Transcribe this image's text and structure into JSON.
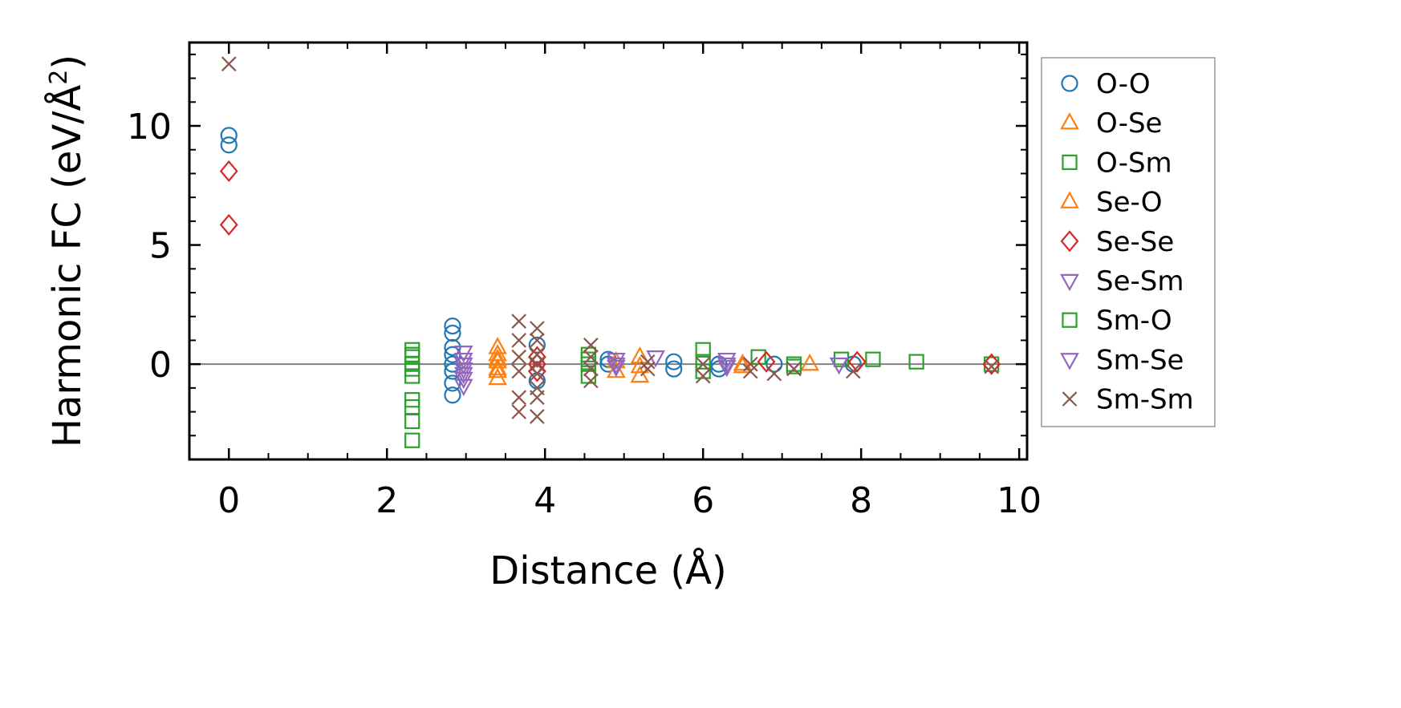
{
  "chart_data": {
    "type": "scatter",
    "xlabel": "Distance (Å)",
    "ylabel_main": "Harmonic FC (eV/Å",
    "ylabel_sup": "2",
    "ylabel_close": ")",
    "xlim": [
      -0.5,
      10.1
    ],
    "ylim": [
      -4.0,
      13.5
    ],
    "xticks": [
      0,
      2,
      4,
      6,
      8,
      10
    ],
    "xtick_labels": [
      "0",
      "2",
      "4",
      "6",
      "8",
      "10"
    ],
    "yticks": [
      0,
      5,
      10
    ],
    "ytick_labels": [
      "0",
      "5",
      "10"
    ],
    "grid": false,
    "legend_position": "outside-right",
    "zero_line": 0,
    "series": [
      {
        "name": "O-O",
        "marker": "circle",
        "filled": false,
        "color": "#1f77b4",
        "points": [
          [
            0,
            9.6
          ],
          [
            0,
            9.2
          ],
          [
            2.83,
            1.6
          ],
          [
            2.83,
            1.3
          ],
          [
            2.83,
            0.7
          ],
          [
            2.83,
            0.4
          ],
          [
            2.83,
            0.0
          ],
          [
            2.83,
            -0.3
          ],
          [
            2.83,
            -0.8
          ],
          [
            2.83,
            -1.3
          ],
          [
            3.9,
            0.8
          ],
          [
            3.9,
            -0.7
          ],
          [
            4.8,
            0.2
          ],
          [
            4.8,
            0.0
          ],
          [
            5.63,
            0.1
          ],
          [
            5.63,
            -0.2
          ],
          [
            6.2,
            0.0
          ],
          [
            6.2,
            -0.2
          ],
          [
            6.9,
            0.0
          ],
          [
            7.9,
            0.0
          ]
        ]
      },
      {
        "name": "O-Se",
        "marker": "triangle-up",
        "filled": false,
        "color": "#ff7f0e",
        "points": [
          [
            3.4,
            0.7
          ],
          [
            3.4,
            0.4
          ],
          [
            3.4,
            0.1
          ],
          [
            3.4,
            -0.3
          ],
          [
            3.4,
            -0.6
          ],
          [
            4.9,
            -0.3
          ],
          [
            5.2,
            0.3
          ],
          [
            5.2,
            -0.5
          ],
          [
            6.5,
            0.0
          ],
          [
            7.35,
            0.0
          ]
        ]
      },
      {
        "name": "O-Sm",
        "marker": "square",
        "filled": false,
        "color": "#2ca02c",
        "points": [
          [
            2.32,
            0.6
          ],
          [
            2.32,
            0.3
          ],
          [
            2.32,
            0.0
          ],
          [
            2.32,
            -0.5
          ],
          [
            2.32,
            -1.5
          ],
          [
            2.32,
            -1.8
          ],
          [
            2.32,
            -2.4
          ],
          [
            2.32,
            -3.2
          ],
          [
            4.55,
            0.4
          ],
          [
            4.55,
            0.0
          ],
          [
            4.55,
            -0.5
          ],
          [
            6.0,
            0.6
          ],
          [
            6.0,
            -0.3
          ],
          [
            6.7,
            0.3
          ],
          [
            7.15,
            0.0
          ],
          [
            7.75,
            0.2
          ],
          [
            8.15,
            0.2
          ],
          [
            8.7,
            0.1
          ],
          [
            9.65,
            0.0
          ]
        ]
      },
      {
        "name": "Se-O",
        "marker": "triangle-up",
        "filled": false,
        "color": "#ff7f0e",
        "points": [
          [
            3.4,
            0.2
          ],
          [
            3.4,
            -0.2
          ],
          [
            4.9,
            0.1
          ],
          [
            5.2,
            -0.1
          ],
          [
            6.5,
            -0.1
          ]
        ]
      },
      {
        "name": "Se-Se",
        "marker": "diamond",
        "filled": false,
        "color": "#d62728",
        "points": [
          [
            0,
            8.1
          ],
          [
            0,
            5.85
          ],
          [
            3.9,
            0.3
          ],
          [
            3.9,
            0.0
          ],
          [
            3.9,
            -0.3
          ],
          [
            6.8,
            0.1
          ],
          [
            7.95,
            0.1
          ],
          [
            9.65,
            0.0
          ]
        ]
      },
      {
        "name": "Se-Sm",
        "marker": "triangle-down",
        "filled": false,
        "color": "#9467bd",
        "points": [
          [
            2.97,
            0.5
          ],
          [
            2.97,
            0.2
          ],
          [
            2.97,
            -0.2
          ],
          [
            2.97,
            -0.6
          ],
          [
            2.97,
            -0.9
          ],
          [
            4.9,
            0.2
          ],
          [
            4.9,
            -0.1
          ],
          [
            5.4,
            0.3
          ],
          [
            6.3,
            0.2
          ],
          [
            6.3,
            -0.1
          ],
          [
            7.72,
            0.0
          ]
        ]
      },
      {
        "name": "Sm-O",
        "marker": "square",
        "filled": false,
        "color": "#2ca02c",
        "points": [
          [
            2.32,
            0.4
          ],
          [
            2.32,
            -0.2
          ],
          [
            4.55,
            0.2
          ],
          [
            6.0,
            0.1
          ],
          [
            7.15,
            -0.1
          ]
        ]
      },
      {
        "name": "Sm-Se",
        "marker": "triangle-down",
        "filled": false,
        "color": "#9467bd",
        "points": [
          [
            2.97,
            0.0
          ],
          [
            2.97,
            -0.4
          ],
          [
            4.9,
            0.0
          ],
          [
            6.3,
            0.0
          ]
        ]
      },
      {
        "name": "Sm-Sm",
        "marker": "x",
        "filled": false,
        "color": "#8c564b",
        "points": [
          [
            0,
            12.6
          ],
          [
            3.67,
            1.8
          ],
          [
            3.67,
            1.0
          ],
          [
            3.67,
            0.3
          ],
          [
            3.67,
            -0.3
          ],
          [
            3.67,
            -1.4
          ],
          [
            3.67,
            -2.0
          ],
          [
            3.9,
            1.5
          ],
          [
            3.9,
            1.0
          ],
          [
            3.9,
            0.4
          ],
          [
            3.9,
            0.0
          ],
          [
            3.9,
            -0.4
          ],
          [
            3.9,
            -1.0
          ],
          [
            3.9,
            -1.4
          ],
          [
            3.9,
            -2.2
          ],
          [
            4.58,
            0.8
          ],
          [
            4.58,
            0.3
          ],
          [
            4.58,
            -0.2
          ],
          [
            4.58,
            -0.7
          ],
          [
            5.3,
            0.1
          ],
          [
            5.3,
            -0.2
          ],
          [
            6.0,
            0.0
          ],
          [
            6.0,
            -0.5
          ],
          [
            6.6,
            0.0
          ],
          [
            6.6,
            -0.3
          ],
          [
            6.9,
            -0.4
          ],
          [
            7.15,
            -0.2
          ],
          [
            7.9,
            -0.3
          ],
          [
            9.65,
            -0.1
          ]
        ]
      }
    ]
  }
}
